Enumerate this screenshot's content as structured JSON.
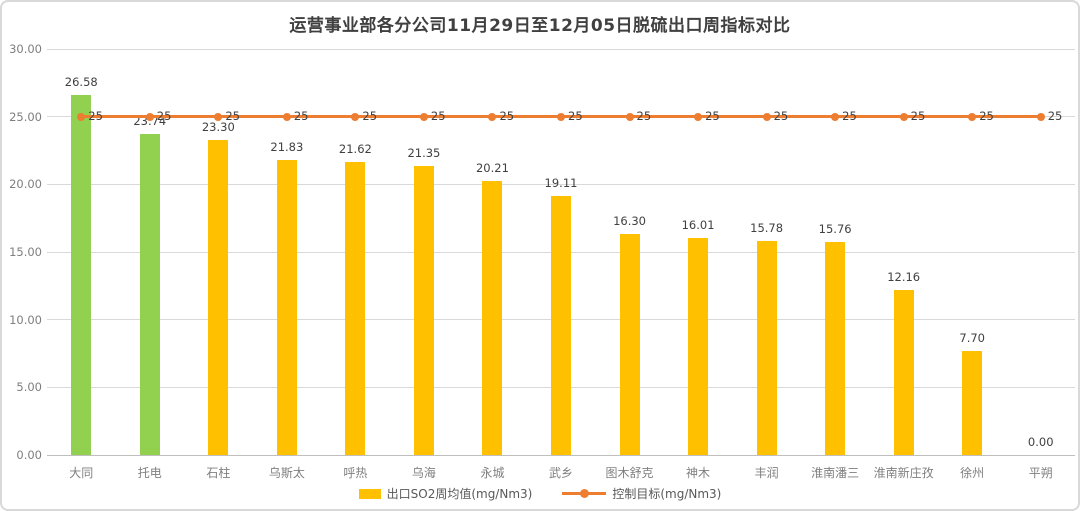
{
  "title": "运营事业部各分公司11月29日至12月05日脱硫出口周指标对比",
  "colors": {
    "bar_default": "#FFC000",
    "bar_highlight": "#92D050",
    "target_line": "#ED7D31",
    "grid": "#D9D9D9",
    "axis_line": "#BFBFBF",
    "axis_text": "#7F7F7F",
    "data_label_text": "#404040",
    "title_text": "#404040",
    "legend_text": "#595959",
    "background": "#FFFFFF",
    "border": "#D9D9D9"
  },
  "chart_data": {
    "type": "bar",
    "title": "运营事业部各分公司11月29日至12月05日脱硫出口周指标对比",
    "categories": [
      "大同",
      "托电",
      "石柱",
      "乌斯太",
      "呼热",
      "乌海",
      "永城",
      "武乡",
      "图木舒克",
      "神木",
      "丰润",
      "淮南潘三",
      "淮南新庄孜",
      "徐州",
      "平朔"
    ],
    "series": [
      {
        "name": "出口SO2周均值(mg/Nm3)",
        "type": "bar",
        "values": [
          26.58,
          23.74,
          23.3,
          21.83,
          21.62,
          21.35,
          20.21,
          19.11,
          16.3,
          16.01,
          15.78,
          15.76,
          12.16,
          7.7,
          0.0
        ],
        "colors": [
          "#92D050",
          "#92D050",
          "#FFC000",
          "#FFC000",
          "#FFC000",
          "#FFC000",
          "#FFC000",
          "#FFC000",
          "#FFC000",
          "#FFC000",
          "#FFC000",
          "#FFC000",
          "#FFC000",
          "#FFC000",
          "#FFC000"
        ],
        "data_labels": [
          "26.58",
          "23.74",
          "23.30",
          "21.83",
          "21.62",
          "21.35",
          "20.21",
          "19.11",
          "16.30",
          "16.01",
          "15.78",
          "15.76",
          "12.16",
          "7.70",
          "0.00"
        ]
      },
      {
        "name": "控制目标(mg/Nm3)",
        "type": "line",
        "values": [
          25,
          25,
          25,
          25,
          25,
          25,
          25,
          25,
          25,
          25,
          25,
          25,
          25,
          25,
          25
        ],
        "color": "#ED7D31",
        "data_labels": [
          "25",
          "25",
          "25",
          "25",
          "25",
          "25",
          "25",
          "25",
          "25",
          "25",
          "25",
          "25",
          "25",
          "25",
          "25"
        ]
      }
    ],
    "xlabel": "",
    "ylabel": "",
    "ylim": [
      0,
      30
    ],
    "y_ticks": [
      0,
      5,
      10,
      15,
      20,
      25,
      30
    ],
    "y_tick_labels": [
      "0.00",
      "5.00",
      "10.00",
      "15.00",
      "20.00",
      "25.00",
      "30.00"
    ],
    "grid": true,
    "legend_position": "bottom"
  }
}
